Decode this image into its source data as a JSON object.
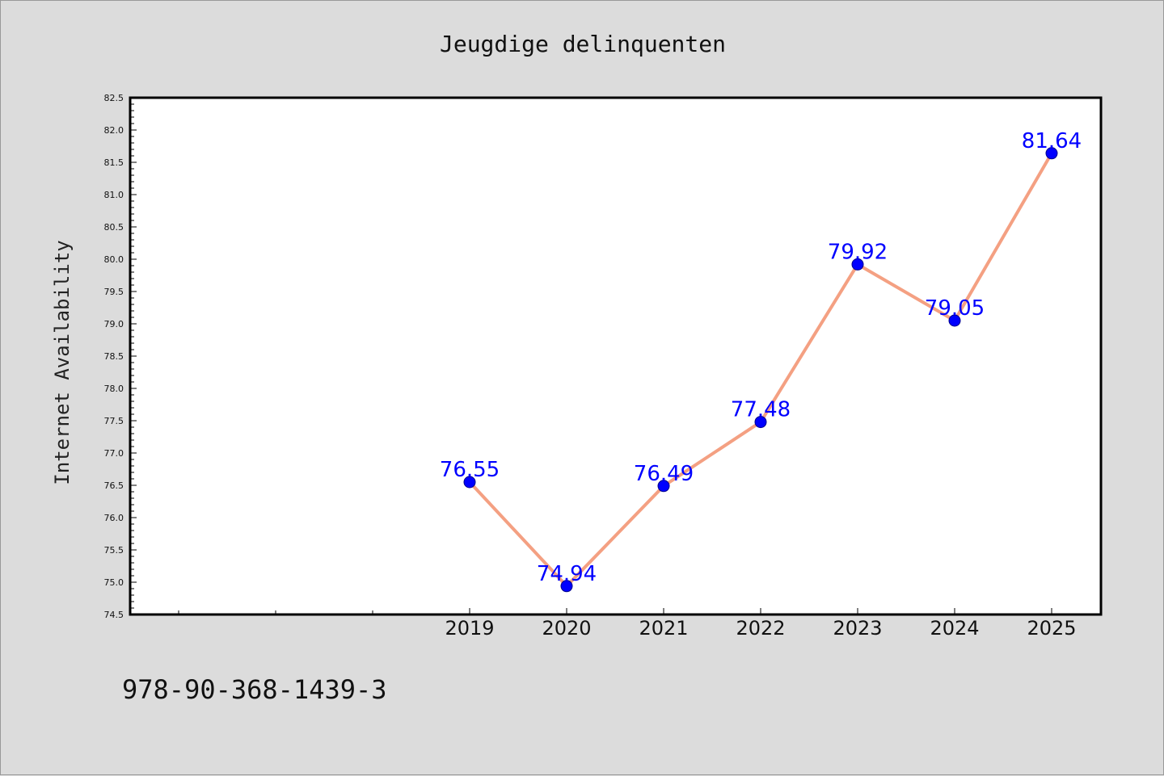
{
  "chart_data": {
    "type": "line",
    "title": "Jeugdige delinquenten",
    "xlabel": "",
    "ylabel": "Internet Availability",
    "x": [
      "2019",
      "2020",
      "2021",
      "2022",
      "2023",
      "2024",
      "2025"
    ],
    "series": [
      {
        "values": [
          76.55,
          74.94,
          76.49,
          77.48,
          79.92,
          79.05,
          81.64
        ],
        "line_color": "#f4a082",
        "marker_color": "#0000ff"
      }
    ],
    "data_labels": [
      "76.55",
      "74.94",
      "76.49",
      "77.48",
      "79.92",
      "79.05",
      "81.64"
    ],
    "ylim": [
      74.5,
      82.5
    ],
    "yticks": [
      "74.5",
      "75.0",
      "75.5",
      "76.0",
      "76.5",
      "77.0",
      "77.5",
      "78.0",
      "78.5",
      "79.0",
      "79.5",
      "80.0",
      "80.5",
      "81.0",
      "81.5",
      "82.0",
      "82.5"
    ],
    "grid": false,
    "legend": "none"
  },
  "footer": {
    "text": "978-90-368-1439-3"
  }
}
